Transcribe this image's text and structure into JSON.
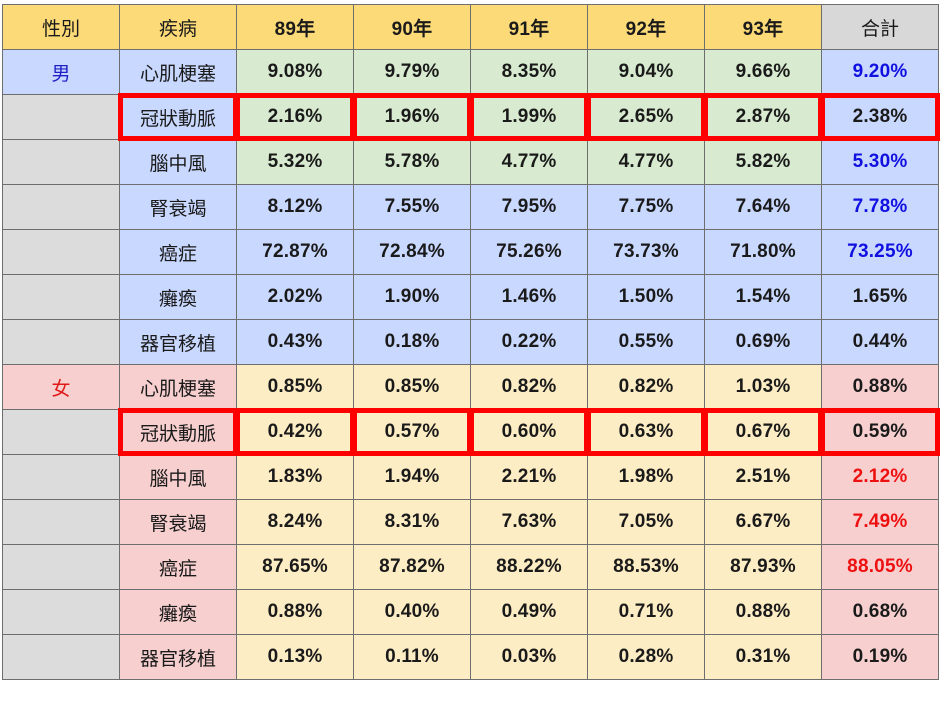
{
  "chart_data": {
    "type": "table",
    "columns": [
      "性別",
      "疾病",
      "89年",
      "90年",
      "91年",
      "92年",
      "93年",
      "合計"
    ],
    "groups": [
      {
        "sex": "男",
        "rows": [
          {
            "disease": "心肌梗塞",
            "values": [
              "9.08%",
              "9.79%",
              "8.35%",
              "9.04%",
              "9.66%"
            ],
            "total": "9.20%",
            "total_color": "blue",
            "highlight": false
          },
          {
            "disease": "冠狀動脈",
            "values": [
              "2.16%",
              "1.96%",
              "1.99%",
              "2.65%",
              "2.87%"
            ],
            "total": "2.38%",
            "total_color": "black",
            "highlight": true
          },
          {
            "disease": "腦中風",
            "values": [
              "5.32%",
              "5.78%",
              "4.77%",
              "4.77%",
              "5.82%"
            ],
            "total": "5.30%",
            "total_color": "blue",
            "highlight": false
          },
          {
            "disease": "腎衰竭",
            "values": [
              "8.12%",
              "7.55%",
              "7.95%",
              "7.75%",
              "7.64%"
            ],
            "total": "7.78%",
            "total_color": "blue",
            "highlight": false
          },
          {
            "disease": "癌症",
            "values": [
              "72.87%",
              "72.84%",
              "75.26%",
              "73.73%",
              "71.80%"
            ],
            "total": "73.25%",
            "total_color": "blue",
            "highlight": false
          },
          {
            "disease": "癱瘓",
            "values": [
              "2.02%",
              "1.90%",
              "1.46%",
              "1.50%",
              "1.54%"
            ],
            "total": "1.65%",
            "total_color": "black",
            "highlight": false
          },
          {
            "disease": "器官移植",
            "values": [
              "0.43%",
              "0.18%",
              "0.22%",
              "0.55%",
              "0.69%"
            ],
            "total": "0.44%",
            "total_color": "black",
            "highlight": false
          }
        ]
      },
      {
        "sex": "女",
        "rows": [
          {
            "disease": "心肌梗塞",
            "values": [
              "0.85%",
              "0.85%",
              "0.82%",
              "0.82%",
              "1.03%"
            ],
            "total": "0.88%",
            "total_color": "black",
            "highlight": false
          },
          {
            "disease": "冠狀動脈",
            "values": [
              "0.42%",
              "0.57%",
              "0.60%",
              "0.63%",
              "0.67%"
            ],
            "total": "0.59%",
            "total_color": "black",
            "highlight": true
          },
          {
            "disease": "腦中風",
            "values": [
              "1.83%",
              "1.94%",
              "2.21%",
              "1.98%",
              "2.51%"
            ],
            "total": "2.12%",
            "total_color": "red",
            "highlight": false
          },
          {
            "disease": "腎衰竭",
            "values": [
              "8.24%",
              "8.31%",
              "7.63%",
              "7.05%",
              "6.67%"
            ],
            "total": "7.49%",
            "total_color": "red",
            "highlight": false
          },
          {
            "disease": "癌症",
            "values": [
              "87.65%",
              "87.82%",
              "88.22%",
              "88.53%",
              "87.93%"
            ],
            "total": "88.05%",
            "total_color": "red",
            "highlight": false
          },
          {
            "disease": "癱瘓",
            "values": [
              "0.88%",
              "0.40%",
              "0.49%",
              "0.71%",
              "0.88%"
            ],
            "total": "0.68%",
            "total_color": "black",
            "highlight": false
          },
          {
            "disease": "器官移植",
            "values": [
              "0.13%",
              "0.11%",
              "0.03%",
              "0.28%",
              "0.31%"
            ],
            "total": "0.19%",
            "total_color": "black",
            "highlight": false
          }
        ]
      }
    ],
    "colors": {
      "header": "#fcda78",
      "header_total": "#d8d8d8",
      "male_cell": "#c9d8ff",
      "male_value": "#d8ebd0",
      "female_cell": "#f7cfcf",
      "female_value": "#fdedc4",
      "highlight_border": "#ff0000",
      "text_blue": "#1010e0",
      "text_red": "#ee1010"
    }
  }
}
